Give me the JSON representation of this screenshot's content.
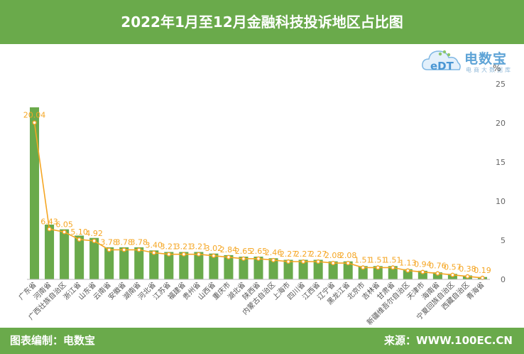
{
  "header": {
    "title": "2022年1月至12月金融科技投诉地区占比图"
  },
  "footer": {
    "left_text": "图表编制：电数宝",
    "right_text": "来源：WWW.100EC.CN"
  },
  "logo": {
    "name": "电数宝",
    "sub": "电商大数据库",
    "mark_text": "eDT"
  },
  "colors": {
    "bar": "#6aaa4b",
    "line": "#f5a623",
    "label": "#f5a623",
    "band": "#6aaa4b"
  },
  "chart_data": {
    "type": "bar",
    "unit": "%",
    "ylim": [
      0,
      25
    ],
    "yticks": [
      0,
      5,
      10,
      15,
      20,
      25
    ],
    "grid": false,
    "categories": [
      "广东省",
      "河南省",
      "广西壮族自治区",
      "浙江省",
      "山东省",
      "云南省",
      "安徽省",
      "湖南省",
      "河北省",
      "江苏省",
      "福建省",
      "贵州省",
      "山西省",
      "重庆市",
      "湖北省",
      "陕西省",
      "内蒙古自治区",
      "上海市",
      "四川省",
      "江西省",
      "辽宁省",
      "黑龙江省",
      "北京市",
      "吉林省",
      "甘肃省",
      "新疆维吾尔自治区",
      "天津市",
      "海南省",
      "宁夏回族自治区",
      "西藏自治区",
      "青海省"
    ],
    "series": [
      {
        "type": "bar",
        "values": [
          22.0,
          7.0,
          6.4,
          5.6,
          5.3,
          4.1,
          4.1,
          4.1,
          3.7,
          3.5,
          3.5,
          3.5,
          3.3,
          3.1,
          2.9,
          2.9,
          2.7,
          2.5,
          2.5,
          2.5,
          2.3,
          2.3,
          1.7,
          1.7,
          1.7,
          1.3,
          1.1,
          0.9,
          0.7,
          0.5,
          0.3
        ]
      },
      {
        "type": "line",
        "values": [
          20.04,
          6.43,
          6.05,
          5.1,
          4.92,
          3.78,
          3.78,
          3.78,
          3.4,
          3.21,
          3.21,
          3.21,
          3.02,
          2.84,
          2.65,
          2.65,
          2.46,
          2.27,
          2.27,
          2.27,
          2.08,
          2.08,
          1.51,
          1.51,
          1.51,
          1.13,
          0.94,
          0.76,
          0.57,
          0.38,
          0.19
        ],
        "labels": [
          "20.04",
          "6.43",
          "6.05",
          "5.10",
          "4.92",
          "3.78",
          "3.78",
          "3.78",
          "3.40",
          "3.21",
          "3.21",
          "3.21",
          "3.02",
          "2.84",
          "2.65",
          "2.65",
          "2.46",
          "2.27",
          "2.27",
          "2.27",
          "2.08",
          "2.08",
          "1.51",
          "1.51",
          "1.51",
          "1.13",
          "0.94",
          "0.76",
          "0.57",
          "0.38",
          "0.19"
        ]
      }
    ]
  }
}
